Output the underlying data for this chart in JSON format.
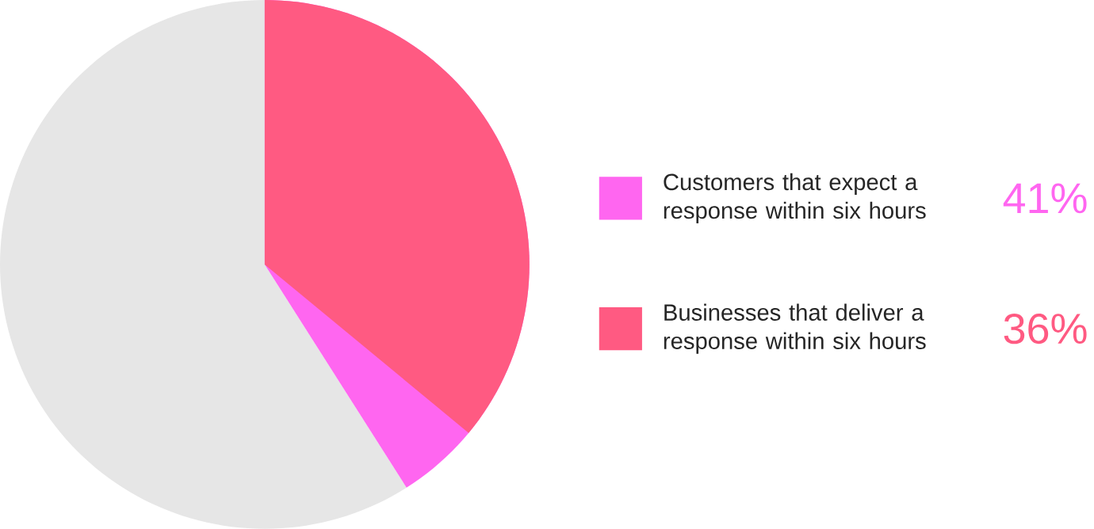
{
  "chart_data": {
    "type": "pie",
    "categories": [
      "Customers that expect a response within six hours",
      "Businesses that deliver a response within six hours",
      null
    ],
    "values": [
      41,
      36,
      59
    ],
    "colors": [
      "#ff66f0",
      "#ff5a82",
      "#e6e6e6"
    ],
    "value_labels": [
      "41%",
      "36%",
      null
    ],
    "legend": "right"
  }
}
